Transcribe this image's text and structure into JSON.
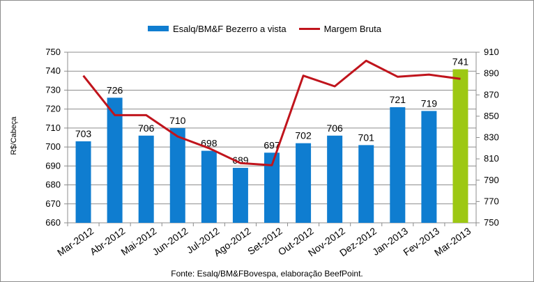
{
  "legend": {
    "bar_label": "Esalq/BM&F Bezerro a vista",
    "line_label": "Margem Bruta"
  },
  "ylabel": "R$/Cabeça",
  "source": "Fonte: Esalq/BM&FBovespa, elaboração BeefPoint.",
  "colors": {
    "bar": "#0F7DD0",
    "bar_highlight": "#9DC813",
    "line": "#C0141C",
    "grid": "#8c8c8c"
  },
  "chart_data": {
    "type": "bar",
    "categories": [
      "Mar-2012",
      "Abr-2012",
      "Mai-2012",
      "Jun-2012",
      "Jul-2012",
      "Ago-2012",
      "Set-2012",
      "Out-2012",
      "Nov-2012",
      "Dez-2012",
      "Jan-2013",
      "Fev-2013",
      "Mar-2013"
    ],
    "series": [
      {
        "name": "Esalq/BM&F Bezerro a vista",
        "type": "bar",
        "axis": "left",
        "values": [
          703,
          726,
          706,
          710,
          698,
          689,
          697,
          702,
          706,
          701,
          721,
          719,
          741
        ],
        "data_labels": [
          "703",
          "726",
          "706",
          "710",
          "698",
          "689",
          "697",
          "702",
          "706",
          "701",
          "721",
          "719",
          "741"
        ]
      },
      {
        "name": "Margem Bruta",
        "type": "line",
        "axis": "right",
        "values": [
          888,
          851,
          851,
          831,
          820,
          806,
          804,
          888,
          878,
          902,
          887,
          889,
          885
        ]
      }
    ],
    "ylim": [
      660,
      750
    ],
    "yticks": [
      "660",
      "670",
      "680",
      "690",
      "700",
      "710",
      "720",
      "730",
      "740",
      "750"
    ],
    "y2lim": [
      750,
      910
    ],
    "y2ticks": [
      "750",
      "770",
      "790",
      "810",
      "830",
      "850",
      "870",
      "890",
      "910"
    ],
    "highlight_index": 12,
    "grid": true,
    "legend_position": "top"
  }
}
